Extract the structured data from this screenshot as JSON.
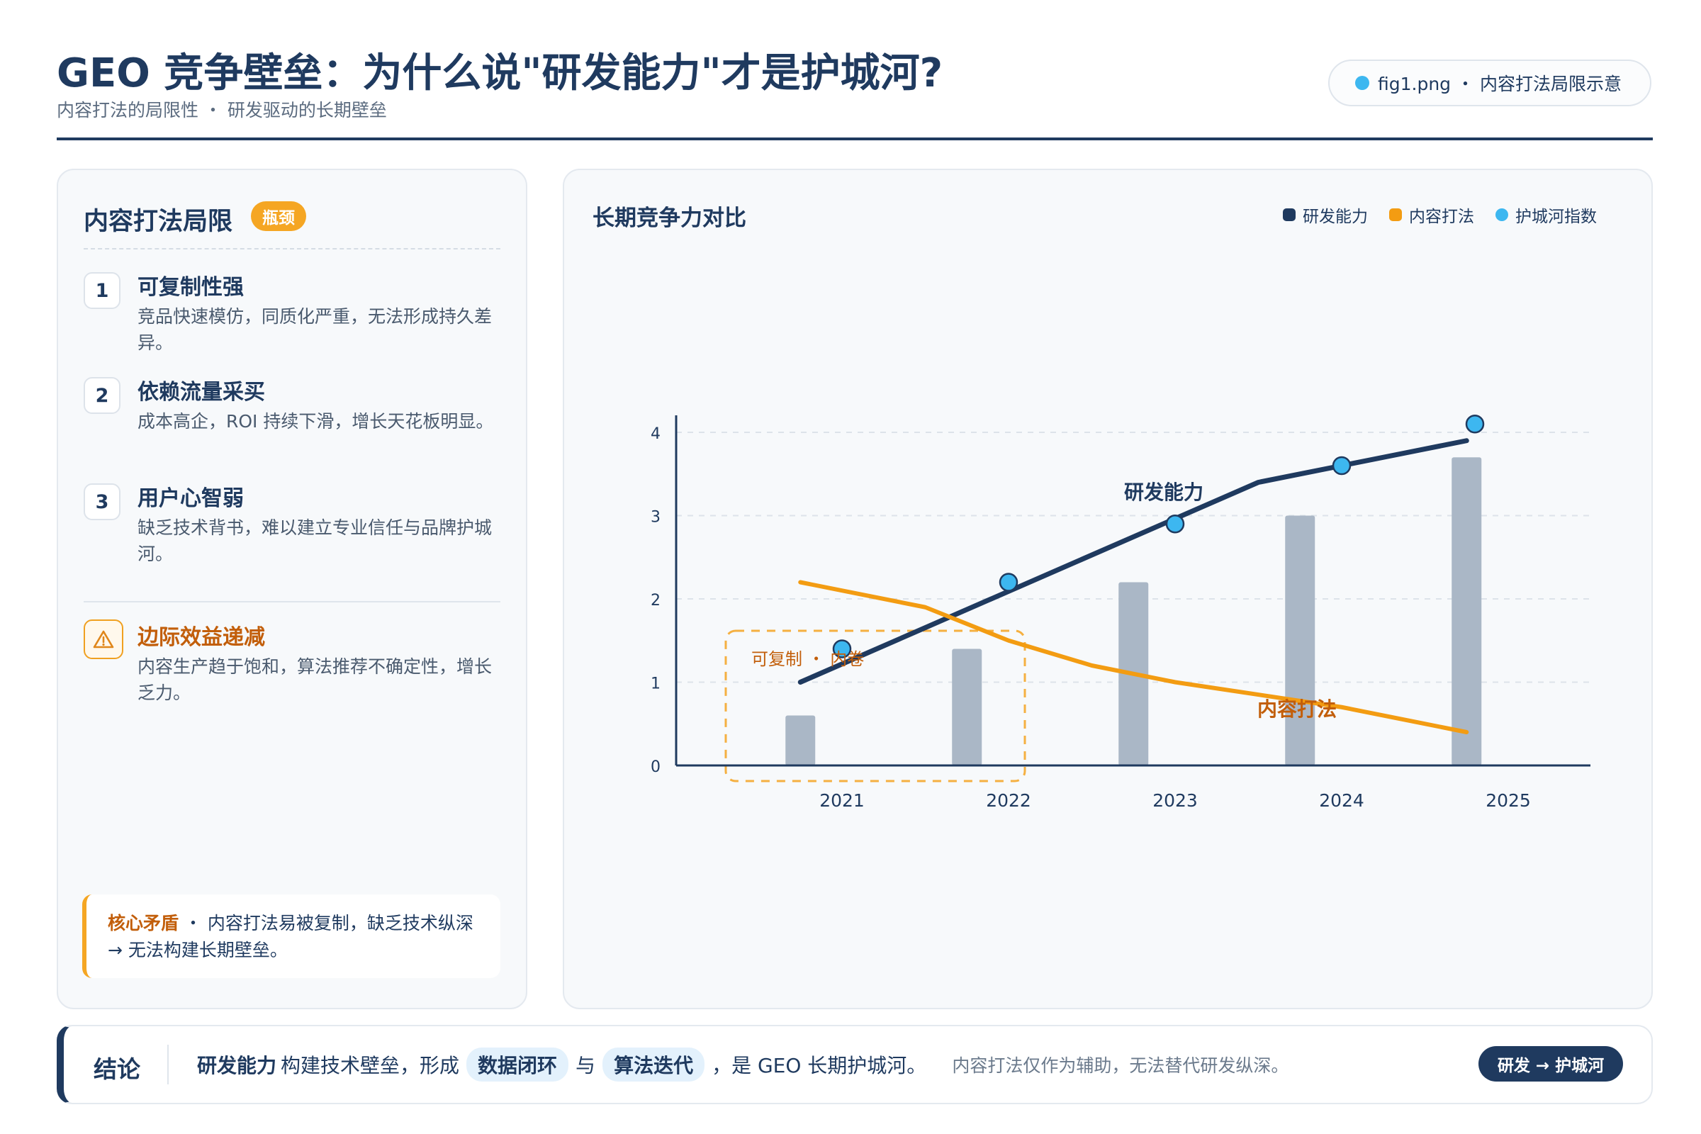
{
  "header": {
    "title": "GEO 竞争壁垒：为什么说\"研发能力\"才是护城河?",
    "subtitle": "内容打法的局限性 ・ 研发驱动的长期壁垒",
    "file_label": "fig1.png ・ 内容打法局限示意"
  },
  "left_panel": {
    "title": "内容打法局限",
    "badge": "瓶颈",
    "items": [
      {
        "num": "1",
        "title": "可复制性强",
        "desc": "竞品快速模仿，同质化严重，无法形成持久差异。"
      },
      {
        "num": "2",
        "title": "依赖流量采买",
        "desc": "成本高企，ROI 持续下滑，增长天花板明显。"
      },
      {
        "num": "3",
        "title": "用户心智弱",
        "desc": "缺乏技术背书，难以建立专业信任与品牌护城河。"
      }
    ],
    "warning": {
      "title": "边际效益递减",
      "desc": "内容生产趋于饱和，算法推荐不确定性，增长乏力。",
      "icon": "warning-triangle-icon"
    },
    "core": {
      "label": "核心矛盾",
      "text": " ・ 内容打法易被复制，缺乏技术纵深 → 无法构建长期壁垒。"
    }
  },
  "chart_data": {
    "type": "line",
    "title": "长期竞争力对比",
    "categories": [
      "2021",
      "2022",
      "2023",
      "2024",
      "2025"
    ],
    "ylim": [
      0,
      4.2
    ],
    "yticks": [
      0,
      1,
      2,
      3,
      4
    ],
    "grid": true,
    "legend_position": "top-right",
    "legend": [
      {
        "name": "研发能力",
        "color": "#1f3a5f"
      },
      {
        "name": "内容打法",
        "color": "#f39c12"
      },
      {
        "name": "护城河指数",
        "color": "#3db7f0"
      }
    ],
    "bars": {
      "color": "#aab7c6",
      "x": [
        2020.75,
        2021.75,
        2022.75,
        2023.75,
        2024.75
      ],
      "values": [
        0.6,
        1.4,
        2.2,
        3.0,
        3.7
      ]
    },
    "series": [
      {
        "name": "研发能力",
        "color": "#1f3a5f",
        "x": [
          2020.75,
          2023.5,
          2024.75
        ],
        "values": [
          1.0,
          3.4,
          3.9
        ]
      },
      {
        "name": "内容打法",
        "color": "#f39c12",
        "x": [
          2020.75,
          2021.5,
          2022.0,
          2022.5,
          2023.0,
          2024.0,
          2024.75
        ],
        "values": [
          2.2,
          1.9,
          1.5,
          1.2,
          1.0,
          0.7,
          0.4
        ]
      },
      {
        "name": "护城河指数",
        "color": "#3db7f0",
        "x": [
          2021,
          2022,
          2023,
          2024,
          2024.8
        ],
        "values": [
          1.4,
          2.2,
          2.9,
          3.6,
          4.1
        ]
      }
    ],
    "annotations": {
      "rd_label": "研发能力",
      "content_label": "内容打法",
      "box_label": "可复制 ・ 内卷"
    }
  },
  "footer": {
    "label": "结论",
    "main": "研发能力",
    "text1": "构建技术壁垒，形成",
    "hl1": "数据闭环",
    "mid": "与",
    "hl2": "算法迭代",
    "text2": "，是 GEO 长期护城河。",
    "note": "内容打法仅作为辅助，无法替代研发纵深。",
    "pill": "研发 → 护城河"
  }
}
